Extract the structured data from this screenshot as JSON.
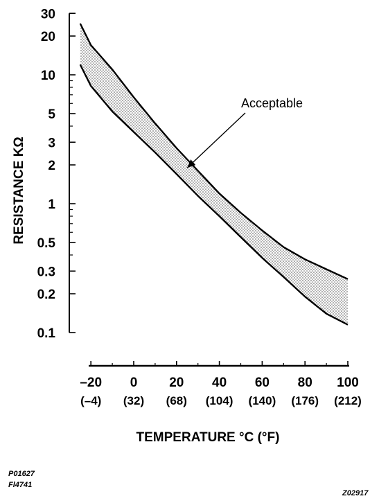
{
  "chart_data": {
    "type": "area",
    "title": "",
    "xlabel": "TEMPERATURE °C (°F)",
    "ylabel": "RESISTANCE KΩ",
    "y_scale": "log",
    "xlim": [
      -25,
      100
    ],
    "ylim": [
      0.1,
      30
    ],
    "x_ticks": [
      -20,
      0,
      20,
      40,
      60,
      80,
      100
    ],
    "x_tick_labels": [
      "–20",
      "0",
      "20",
      "40",
      "60",
      "80",
      "100"
    ],
    "x_tick_labels_f": [
      "(–4)",
      "(32)",
      "(68)",
      "(104)",
      "(140)",
      "(176)",
      "(212)"
    ],
    "y_ticks": [
      0.1,
      0.2,
      0.3,
      0.5,
      1,
      2,
      3,
      5,
      10,
      20,
      30
    ],
    "y_tick_labels": [
      "0.1",
      "0.2",
      "0.3",
      "0.5",
      "1",
      "2",
      "3",
      "5",
      "10",
      "20",
      "30"
    ],
    "grid": false,
    "series": [
      {
        "role": "upper-limit",
        "x": [
          -25,
          -20,
          -10,
          0,
          10,
          20,
          30,
          40,
          50,
          60,
          70,
          80,
          90,
          100
        ],
        "values": [
          25,
          17,
          11,
          6.7,
          4.2,
          2.7,
          1.8,
          1.2,
          0.85,
          0.62,
          0.46,
          0.37,
          0.31,
          0.26
        ]
      },
      {
        "role": "lower-limit",
        "x": [
          -25,
          -20,
          -10,
          0,
          10,
          20,
          30,
          40,
          50,
          60,
          70,
          80,
          90,
          100
        ],
        "values": [
          12,
          8.2,
          5.2,
          3.6,
          2.5,
          1.7,
          1.15,
          0.8,
          0.55,
          0.38,
          0.27,
          0.19,
          0.14,
          0.115
        ]
      }
    ],
    "annotations": [
      {
        "text": "Acceptable",
        "points_to": {
          "x": 25,
          "y": 1.9
        }
      }
    ]
  },
  "footer": {
    "ref_top": "P01627",
    "ref_bottom": "Fl4741",
    "ref_right": "Z02917"
  }
}
